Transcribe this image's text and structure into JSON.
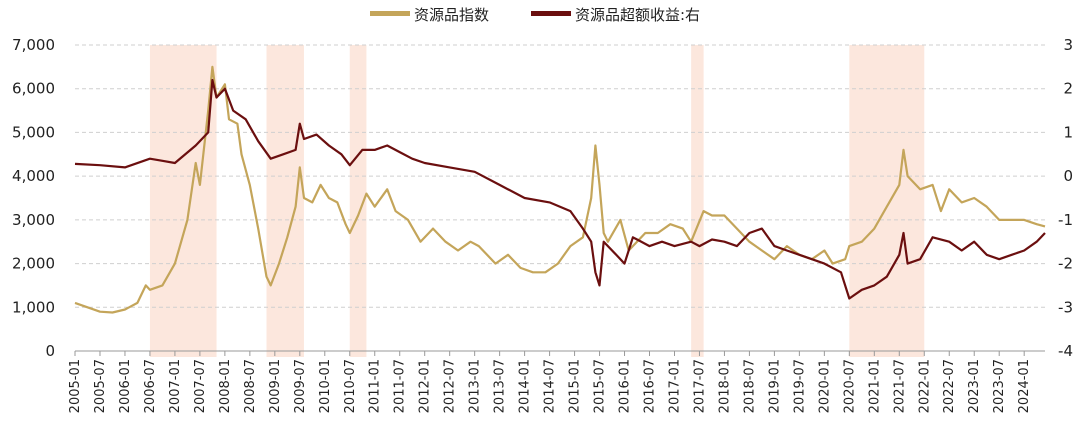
{
  "chart_data": {
    "type": "line",
    "title": "",
    "legend": {
      "placement": "top-center"
    },
    "grid": {
      "horizontal": true,
      "style": "dashed"
    },
    "axes": {
      "x": {
        "type": "date",
        "range": [
          "2005-01",
          "2024-06"
        ],
        "ticks": [
          "2005-01",
          "2005-07",
          "2006-01",
          "2006-07",
          "2007-01",
          "2007-07",
          "2008-01",
          "2008-07",
          "2009-01",
          "2009-07",
          "2010-01",
          "2010-07",
          "2011-01",
          "2011-07",
          "2012-01",
          "2012-07",
          "2013-01",
          "2013-07",
          "2014-01",
          "2014-07",
          "2015-01",
          "2015-07",
          "2016-01",
          "2016-07",
          "2017-01",
          "2017-07",
          "2018-01",
          "2018-07",
          "2019-01",
          "2019-07",
          "2020-01",
          "2020-07",
          "2021-01",
          "2021-07",
          "2022-01",
          "2022-07",
          "2023-01",
          "2023-07",
          "2024-01"
        ]
      },
      "y_left": {
        "range": [
          0,
          7000
        ],
        "ticks": [
          "0",
          "1,000",
          "2,000",
          "3,000",
          "4,000",
          "5,000",
          "6,000",
          "7,000"
        ],
        "tick_values": [
          0,
          1000,
          2000,
          3000,
          4000,
          5000,
          6000,
          7000
        ]
      },
      "y_right": {
        "range": [
          -4,
          3
        ],
        "ticks": [
          "-4",
          "-3",
          "-2",
          "-1",
          "0",
          "1",
          "2",
          "3"
        ],
        "tick_values": [
          -4,
          -3,
          -2,
          -1,
          0,
          1,
          2,
          3
        ]
      }
    },
    "shaded_periods": [
      {
        "start": "2006-07",
        "end": "2007-11"
      },
      {
        "start": "2008-11",
        "end": "2009-08"
      },
      {
        "start": "2010-07",
        "end": "2010-11"
      },
      {
        "start": "2017-05",
        "end": "2017-08"
      },
      {
        "start": "2020-07",
        "end": "2022-01"
      }
    ],
    "series": [
      {
        "name": "资源品指数",
        "axis": "left",
        "color": "#C4A55A",
        "points": [
          [
            "2005-01",
            1100
          ],
          [
            "2005-04",
            1000
          ],
          [
            "2005-07",
            900
          ],
          [
            "2005-10",
            880
          ],
          [
            "2006-01",
            950
          ],
          [
            "2006-04",
            1100
          ],
          [
            "2006-06",
            1500
          ],
          [
            "2006-07",
            1400
          ],
          [
            "2006-10",
            1500
          ],
          [
            "2007-01",
            2000
          ],
          [
            "2007-04",
            3000
          ],
          [
            "2007-06",
            4300
          ],
          [
            "2007-07",
            3800
          ],
          [
            "2007-09",
            5500
          ],
          [
            "2007-10",
            6500
          ],
          [
            "2007-11",
            5800
          ],
          [
            "2008-01",
            6100
          ],
          [
            "2008-02",
            5300
          ],
          [
            "2008-04",
            5200
          ],
          [
            "2008-05",
            4500
          ],
          [
            "2008-07",
            3800
          ],
          [
            "2008-09",
            2800
          ],
          [
            "2008-11",
            1700
          ],
          [
            "2008-12",
            1500
          ],
          [
            "2009-02",
            2000
          ],
          [
            "2009-04",
            2600
          ],
          [
            "2009-06",
            3300
          ],
          [
            "2009-07",
            4200
          ],
          [
            "2009-08",
            3500
          ],
          [
            "2009-10",
            3400
          ],
          [
            "2009-12",
            3800
          ],
          [
            "2010-02",
            3500
          ],
          [
            "2010-04",
            3400
          ],
          [
            "2010-06",
            2900
          ],
          [
            "2010-07",
            2700
          ],
          [
            "2010-09",
            3100
          ],
          [
            "2010-11",
            3600
          ],
          [
            "2011-01",
            3300
          ],
          [
            "2011-04",
            3700
          ],
          [
            "2011-06",
            3200
          ],
          [
            "2011-09",
            3000
          ],
          [
            "2011-12",
            2500
          ],
          [
            "2012-03",
            2800
          ],
          [
            "2012-06",
            2500
          ],
          [
            "2012-09",
            2300
          ],
          [
            "2012-12",
            2500
          ],
          [
            "2013-02",
            2400
          ],
          [
            "2013-06",
            2000
          ],
          [
            "2013-09",
            2200
          ],
          [
            "2013-12",
            1900
          ],
          [
            "2014-03",
            1800
          ],
          [
            "2014-06",
            1800
          ],
          [
            "2014-09",
            2000
          ],
          [
            "2014-12",
            2400
          ],
          [
            "2015-03",
            2600
          ],
          [
            "2015-05",
            3500
          ],
          [
            "2015-06",
            4700
          ],
          [
            "2015-07",
            3800
          ],
          [
            "2015-08",
            2700
          ],
          [
            "2015-09",
            2500
          ],
          [
            "2015-12",
            3000
          ],
          [
            "2016-02",
            2300
          ],
          [
            "2016-06",
            2700
          ],
          [
            "2016-09",
            2700
          ],
          [
            "2016-12",
            2900
          ],
          [
            "2017-03",
            2800
          ],
          [
            "2017-05",
            2500
          ],
          [
            "2017-08",
            3200
          ],
          [
            "2017-10",
            3100
          ],
          [
            "2018-01",
            3100
          ],
          [
            "2018-04",
            2800
          ],
          [
            "2018-07",
            2500
          ],
          [
            "2018-10",
            2300
          ],
          [
            "2019-01",
            2100
          ],
          [
            "2019-04",
            2400
          ],
          [
            "2019-07",
            2200
          ],
          [
            "2019-10",
            2100
          ],
          [
            "2020-01",
            2300
          ],
          [
            "2020-03",
            2000
          ],
          [
            "2020-06",
            2100
          ],
          [
            "2020-07",
            2400
          ],
          [
            "2020-10",
            2500
          ],
          [
            "2021-01",
            2800
          ],
          [
            "2021-04",
            3300
          ],
          [
            "2021-07",
            3800
          ],
          [
            "2021-08",
            4600
          ],
          [
            "2021-09",
            4000
          ],
          [
            "2021-12",
            3700
          ],
          [
            "2022-03",
            3800
          ],
          [
            "2022-05",
            3200
          ],
          [
            "2022-07",
            3700
          ],
          [
            "2022-10",
            3400
          ],
          [
            "2023-01",
            3500
          ],
          [
            "2023-04",
            3300
          ],
          [
            "2023-07",
            3000
          ],
          [
            "2023-10",
            3000
          ],
          [
            "2024-01",
            3000
          ],
          [
            "2024-04",
            2900
          ],
          [
            "2024-06",
            2850
          ]
        ]
      },
      {
        "name": "资源品超额收益:右",
        "axis": "right",
        "color": "#6B0F0F",
        "points": [
          [
            "2005-01",
            0.28
          ],
          [
            "2005-07",
            0.25
          ],
          [
            "2006-01",
            0.2
          ],
          [
            "2006-07",
            0.4
          ],
          [
            "2006-10",
            0.35
          ],
          [
            "2007-01",
            0.3
          ],
          [
            "2007-06",
            0.7
          ],
          [
            "2007-09",
            1.0
          ],
          [
            "2007-10",
            2.2
          ],
          [
            "2007-11",
            1.8
          ],
          [
            "2008-01",
            2.0
          ],
          [
            "2008-03",
            1.5
          ],
          [
            "2008-06",
            1.3
          ],
          [
            "2008-09",
            0.8
          ],
          [
            "2008-12",
            0.4
          ],
          [
            "2009-03",
            0.5
          ],
          [
            "2009-06",
            0.6
          ],
          [
            "2009-07",
            1.2
          ],
          [
            "2009-08",
            0.85
          ],
          [
            "2009-11",
            0.95
          ],
          [
            "2010-02",
            0.7
          ],
          [
            "2010-05",
            0.5
          ],
          [
            "2010-07",
            0.25
          ],
          [
            "2010-10",
            0.6
          ],
          [
            "2011-01",
            0.6
          ],
          [
            "2011-04",
            0.7
          ],
          [
            "2011-07",
            0.55
          ],
          [
            "2011-10",
            0.4
          ],
          [
            "2012-01",
            0.3
          ],
          [
            "2012-07",
            0.2
          ],
          [
            "2013-01",
            0.1
          ],
          [
            "2013-07",
            -0.2
          ],
          [
            "2014-01",
            -0.5
          ],
          [
            "2014-07",
            -0.6
          ],
          [
            "2014-12",
            -0.8
          ],
          [
            "2015-03",
            -1.2
          ],
          [
            "2015-05",
            -1.5
          ],
          [
            "2015-06",
            -2.2
          ],
          [
            "2015-07",
            -2.5
          ],
          [
            "2015-08",
            -1.5
          ],
          [
            "2015-11",
            -1.8
          ],
          [
            "2016-01",
            -2.0
          ],
          [
            "2016-03",
            -1.4
          ],
          [
            "2016-07",
            -1.6
          ],
          [
            "2016-10",
            -1.5
          ],
          [
            "2017-01",
            -1.6
          ],
          [
            "2017-05",
            -1.5
          ],
          [
            "2017-07",
            -1.6
          ],
          [
            "2017-10",
            -1.45
          ],
          [
            "2018-01",
            -1.5
          ],
          [
            "2018-04",
            -1.6
          ],
          [
            "2018-07",
            -1.3
          ],
          [
            "2018-10",
            -1.2
          ],
          [
            "2019-01",
            -1.6
          ],
          [
            "2019-04",
            -1.7
          ],
          [
            "2019-07",
            -1.8
          ],
          [
            "2019-10",
            -1.9
          ],
          [
            "2020-01",
            -2.0
          ],
          [
            "2020-05",
            -2.2
          ],
          [
            "2020-07",
            -2.8
          ],
          [
            "2020-10",
            -2.6
          ],
          [
            "2021-01",
            -2.5
          ],
          [
            "2021-04",
            -2.3
          ],
          [
            "2021-07",
            -1.8
          ],
          [
            "2021-08",
            -1.3
          ],
          [
            "2021-09",
            -2.0
          ],
          [
            "2021-12",
            -1.9
          ],
          [
            "2022-03",
            -1.4
          ],
          [
            "2022-07",
            -1.5
          ],
          [
            "2022-10",
            -1.7
          ],
          [
            "2023-01",
            -1.5
          ],
          [
            "2023-04",
            -1.8
          ],
          [
            "2023-07",
            -1.9
          ],
          [
            "2023-10",
            -1.8
          ],
          [
            "2024-01",
            -1.7
          ],
          [
            "2024-04",
            -1.5
          ],
          [
            "2024-06",
            -1.3
          ]
        ]
      }
    ]
  }
}
